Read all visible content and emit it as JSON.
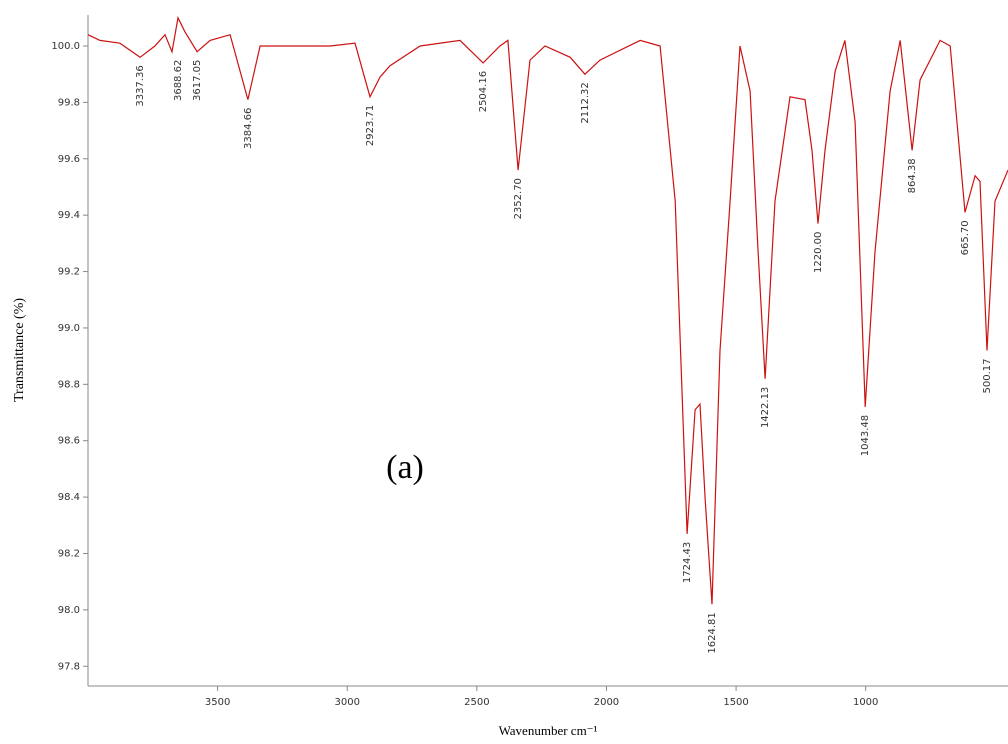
{
  "chart_data": {
    "type": "line",
    "xlabel": "Wavenumber cm⁻¹",
    "ylabel": "Transmittance (%)",
    "panel_label": "(a)",
    "xlim": [
      4000,
      451
    ],
    "ylim": [
      97.73,
      100.11
    ],
    "xticks": [
      3500,
      3000,
      2500,
      2000,
      1500,
      1000
    ],
    "yticks": [
      {
        "value": 100,
        "label": "100.0"
      },
      99.8,
      99.6,
      99.4,
      99.2,
      {
        "value": 99,
        "label": "99.0"
      },
      98.8,
      98.6,
      98.4,
      98.2,
      {
        "value": 98,
        "label": "98.0"
      },
      97.8
    ],
    "x": [
      4000,
      3954,
      3877,
      3799,
      3742,
      3703,
      3676,
      3653,
      3626,
      3579,
      3529,
      3452,
      3383,
      3336,
      3182,
      3066,
      2970,
      2912,
      2873,
      2835,
      2719,
      2565,
      2476,
      2411,
      2380,
      2341,
      2295,
      2237,
      2140,
      2083,
      2025,
      1870,
      1793,
      1735,
      1689,
      1658,
      1639,
      1619,
      1593,
      1562,
      1523,
      1485,
      1446,
      1415,
      1388,
      1350,
      1292,
      1234,
      1207,
      1184,
      1157,
      1118,
      1080,
      1041,
      1002,
      964,
      906,
      867,
      821,
      790,
      713,
      674,
      617,
      578,
      559,
      532,
      501,
      451
    ],
    "series": [
      {
        "color": "#cc1111",
        "values": [
          100.04,
          100.02,
          100.01,
          99.96,
          100.0,
          100.04,
          99.98,
          100.1,
          100.05,
          99.98,
          100.02,
          100.04,
          99.81,
          100.0,
          100.0,
          100.0,
          100.01,
          99.82,
          99.89,
          99.93,
          100.0,
          100.02,
          99.94,
          100.0,
          100.02,
          99.56,
          99.95,
          100.0,
          99.96,
          99.9,
          99.95,
          100.02,
          100.0,
          99.45,
          98.27,
          98.71,
          98.73,
          98.39,
          98.02,
          98.92,
          99.45,
          100.0,
          99.84,
          99.27,
          98.82,
          99.45,
          99.82,
          99.81,
          99.63,
          99.37,
          99.63,
          99.91,
          100.02,
          99.73,
          98.72,
          99.27,
          99.84,
          100.02,
          99.63,
          99.88,
          100.02,
          100.0,
          99.41,
          99.54,
          99.52,
          98.92,
          99.45,
          99.56
        ]
      }
    ],
    "annotations": [
      {
        "text": "3337.36",
        "x": 3799,
        "y": 99.96
      },
      {
        "text": "3688.62",
        "x": 3653,
        "y": 99.98
      },
      {
        "text": "3617.05",
        "x": 3579,
        "y": 99.98
      },
      {
        "text": "3384.66",
        "x": 3383,
        "y": 99.81
      },
      {
        "text": "2923.71",
        "x": 2912,
        "y": 99.82
      },
      {
        "text": "2504.16",
        "x": 2476,
        "y": 99.94
      },
      {
        "text": "2352.70",
        "x": 2341,
        "y": 99.56
      },
      {
        "text": "2112.32",
        "x": 2083,
        "y": 99.9
      },
      {
        "text": "1724.43",
        "x": 1689,
        "y": 98.27
      },
      {
        "text": "1624.81",
        "x": 1593,
        "y": 98.02
      },
      {
        "text": "1422.13",
        "x": 1388,
        "y": 98.82
      },
      {
        "text": "1220.00",
        "x": 1184,
        "y": 99.37
      },
      {
        "text": "1043.48",
        "x": 1002,
        "y": 98.72
      },
      {
        "text": "864.38",
        "x": 821,
        "y": 99.63
      },
      {
        "text": "665.70",
        "x": 617,
        "y": 99.41
      },
      {
        "text": "500.17",
        "x": 532,
        "y": 98.92
      }
    ]
  }
}
